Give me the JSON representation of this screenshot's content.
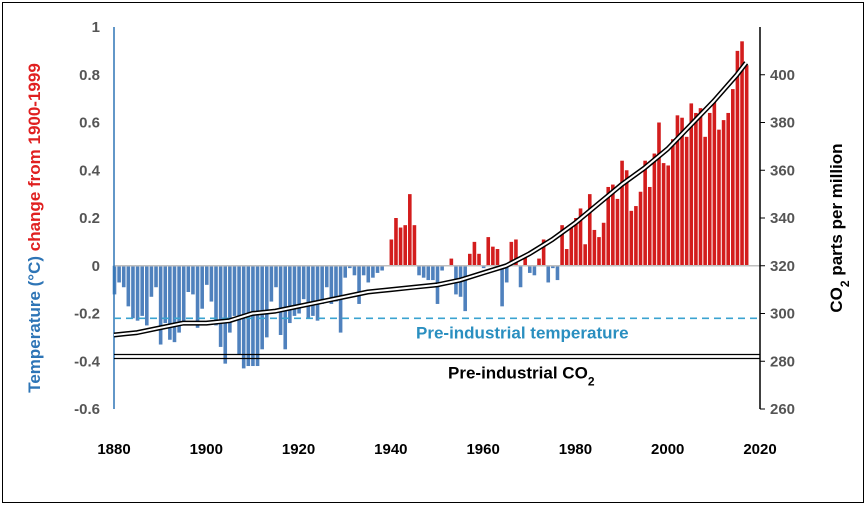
{
  "chart_data": {
    "type": "bar",
    "xlabel": "",
    "x_ticks": [
      "1880",
      "1900",
      "1920",
      "1940",
      "1960",
      "1980",
      "2000",
      "2020"
    ],
    "xlim": [
      1880,
      2020
    ],
    "y_left": {
      "label_parts": [
        "Temperature (°C)",
        " change from 1900-1999"
      ],
      "label_colors": [
        "#2e75b6",
        "#e02020"
      ],
      "ylim": [
        -0.6,
        1.0
      ],
      "ticks": [
        "1",
        "0.8",
        "0.6",
        "0.4",
        "0.2",
        "0",
        "-0.2",
        "-0.4",
        "-0.6"
      ]
    },
    "y_right": {
      "label_main": "CO",
      "label_sub": "2",
      "label_tail": " parts per million",
      "ylim": [
        260,
        420
      ],
      "ticks": [
        "400",
        "380",
        "360",
        "340",
        "320",
        "300",
        "280",
        "260"
      ]
    },
    "colors": {
      "positive": "#d31d1d",
      "negative": "#4f81bd",
      "pre_temp_line": "#3ba3d0",
      "co2_line": "#000000"
    },
    "series": [
      {
        "name": "Temperature anomaly",
        "years": [
          1880,
          1881,
          1882,
          1883,
          1884,
          1885,
          1886,
          1887,
          1888,
          1889,
          1890,
          1891,
          1892,
          1893,
          1894,
          1895,
          1896,
          1897,
          1898,
          1899,
          1900,
          1901,
          1902,
          1903,
          1904,
          1905,
          1906,
          1907,
          1908,
          1909,
          1910,
          1911,
          1912,
          1913,
          1914,
          1915,
          1916,
          1917,
          1918,
          1919,
          1920,
          1921,
          1922,
          1923,
          1924,
          1925,
          1926,
          1927,
          1928,
          1929,
          1930,
          1931,
          1932,
          1933,
          1934,
          1935,
          1936,
          1937,
          1938,
          1939,
          1940,
          1941,
          1942,
          1943,
          1944,
          1945,
          1946,
          1947,
          1948,
          1949,
          1950,
          1951,
          1952,
          1953,
          1954,
          1955,
          1956,
          1957,
          1958,
          1959,
          1960,
          1961,
          1962,
          1963,
          1964,
          1965,
          1966,
          1967,
          1968,
          1969,
          1970,
          1971,
          1972,
          1973,
          1974,
          1975,
          1976,
          1977,
          1978,
          1979,
          1980,
          1981,
          1982,
          1983,
          1984,
          1985,
          1986,
          1987,
          1988,
          1989,
          1990,
          1991,
          1992,
          1993,
          1994,
          1995,
          1996,
          1997,
          1998,
          1999,
          2000,
          2001,
          2002,
          2003,
          2004,
          2005,
          2006,
          2007,
          2008,
          2009,
          2010,
          2011,
          2012,
          2013,
          2014,
          2015,
          2016,
          2017
        ],
        "values": [
          -0.12,
          -0.07,
          -0.09,
          -0.17,
          -0.22,
          -0.23,
          -0.21,
          -0.25,
          -0.13,
          -0.09,
          -0.33,
          -0.24,
          -0.31,
          -0.32,
          -0.28,
          -0.24,
          -0.11,
          -0.12,
          -0.26,
          -0.18,
          -0.08,
          -0.15,
          -0.25,
          -0.34,
          -0.41,
          -0.28,
          -0.21,
          -0.37,
          -0.43,
          -0.42,
          -0.42,
          -0.42,
          -0.35,
          -0.3,
          -0.15,
          -0.09,
          -0.29,
          -0.35,
          -0.24,
          -0.21,
          -0.2,
          -0.14,
          -0.22,
          -0.21,
          -0.23,
          -0.16,
          -0.09,
          -0.16,
          -0.15,
          -0.28,
          -0.05,
          -0.01,
          -0.04,
          -0.16,
          -0.04,
          -0.07,
          -0.05,
          -0.03,
          -0.02,
          0.0,
          0.11,
          0.2,
          0.16,
          0.17,
          0.3,
          0.17,
          -0.04,
          -0.05,
          -0.06,
          -0.06,
          -0.16,
          -0.02,
          0.0,
          0.03,
          -0.12,
          -0.13,
          -0.19,
          0.05,
          0.1,
          0.05,
          -0.01,
          0.12,
          0.08,
          0.07,
          -0.17,
          -0.07,
          0.1,
          0.11,
          -0.09,
          0.04,
          -0.03,
          -0.04,
          0.03,
          0.11,
          -0.07,
          -0.01,
          -0.06,
          0.17,
          0.07,
          0.17,
          0.2,
          0.24,
          0.09,
          0.3,
          0.15,
          0.12,
          0.18,
          0.33,
          0.34,
          0.28,
          0.44,
          0.4,
          0.23,
          0.25,
          0.31,
          0.44,
          0.33,
          0.47,
          0.6,
          0.43,
          0.42,
          0.53,
          0.63,
          0.62,
          0.54,
          0.68,
          0.64,
          0.66,
          0.54,
          0.64,
          0.7,
          0.57,
          0.61,
          0.64,
          0.74,
          0.9,
          0.94,
          0.84
        ]
      },
      {
        "name": "CO2",
        "x": [
          1880,
          1885,
          1890,
          1895,
          1900,
          1905,
          1910,
          1915,
          1920,
          1925,
          1930,
          1935,
          1940,
          1945,
          1950,
          1955,
          1960,
          1965,
          1970,
          1975,
          1980,
          1985,
          1990,
          1995,
          2000,
          2005,
          2010,
          2015,
          2017
        ],
        "values": [
          291,
          292,
          294,
          296,
          296,
          297,
          300,
          301,
          303,
          305,
          307,
          309,
          310,
          311,
          312,
          314,
          317,
          320,
          325,
          331,
          338,
          346,
          354,
          361,
          369,
          379,
          389,
          400,
          405
        ]
      }
    ],
    "annotations": {
      "pre_industrial_temperature": {
        "label": "Pre-industrial temperature",
        "value": -0.22
      },
      "pre_industrial_co2": {
        "label_main": "Pre-industrial CO",
        "label_sub": "2",
        "value": 282
      }
    }
  }
}
